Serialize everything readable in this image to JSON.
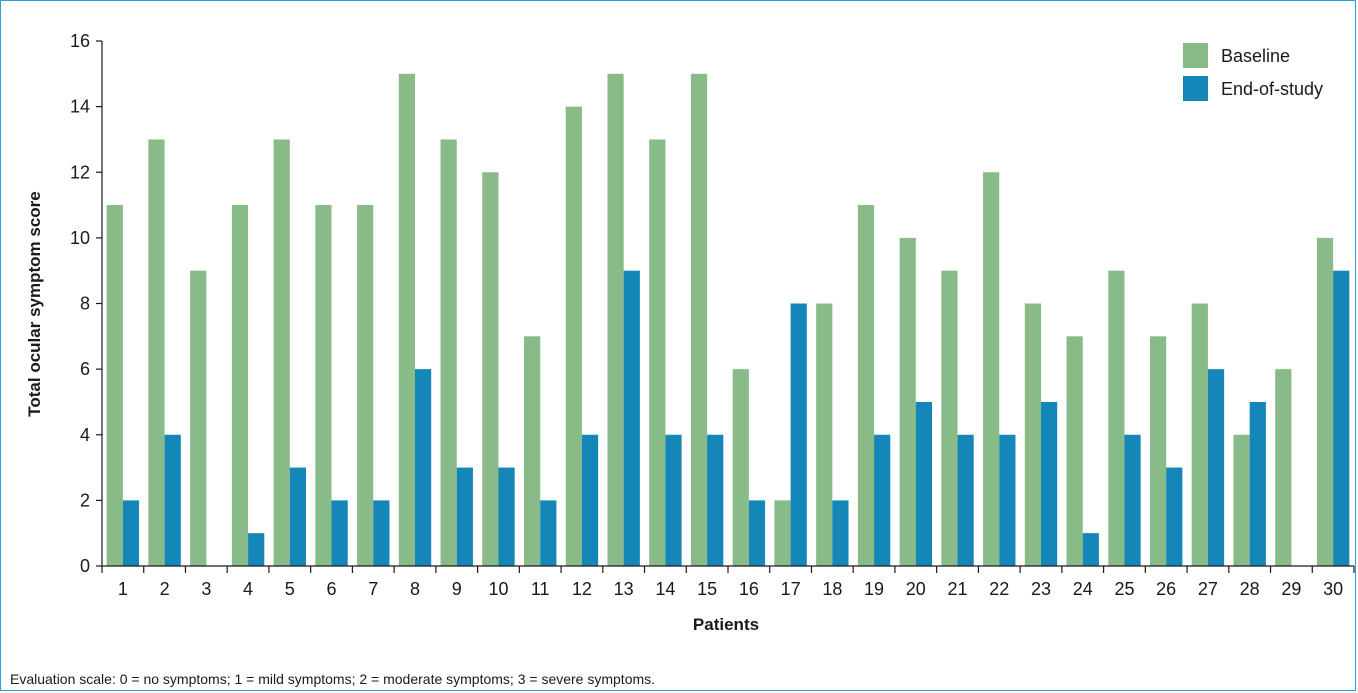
{
  "chart_data": {
    "type": "bar",
    "title": "",
    "xlabel": "Patients",
    "ylabel": "Total ocular symptom score",
    "ylim": [
      0,
      16
    ],
    "yticks": [
      0,
      2,
      4,
      6,
      8,
      10,
      12,
      14,
      16
    ],
    "categories": [
      "1",
      "2",
      "3",
      "4",
      "5",
      "6",
      "7",
      "8",
      "9",
      "10",
      "11",
      "12",
      "13",
      "14",
      "15",
      "16",
      "17",
      "18",
      "19",
      "20",
      "21",
      "22",
      "23",
      "24",
      "25",
      "26",
      "27",
      "28",
      "29",
      "30"
    ],
    "series": [
      {
        "name": "Baseline",
        "color": "#88bb88",
        "values": [
          11,
          13,
          9,
          11,
          13,
          11,
          11,
          15,
          13,
          12,
          7,
          14,
          15,
          13,
          15,
          6,
          2,
          8,
          11,
          10,
          9,
          12,
          8,
          7,
          9,
          7,
          8,
          4,
          6,
          10
        ]
      },
      {
        "name": "End-of-study",
        "color": "#1487b8",
        "values": [
          2,
          4,
          0,
          1,
          3,
          2,
          2,
          6,
          3,
          3,
          2,
          4,
          9,
          4,
          4,
          2,
          8,
          2,
          4,
          5,
          4,
          4,
          5,
          1,
          4,
          3,
          6,
          5,
          0,
          9
        ]
      }
    ],
    "legend_position": "top-right",
    "grid": false
  },
  "footnote": "Evaluation scale: 0 = no symptoms; 1 = mild symptoms; 2 = moderate symptoms; 3 = severe symptoms."
}
